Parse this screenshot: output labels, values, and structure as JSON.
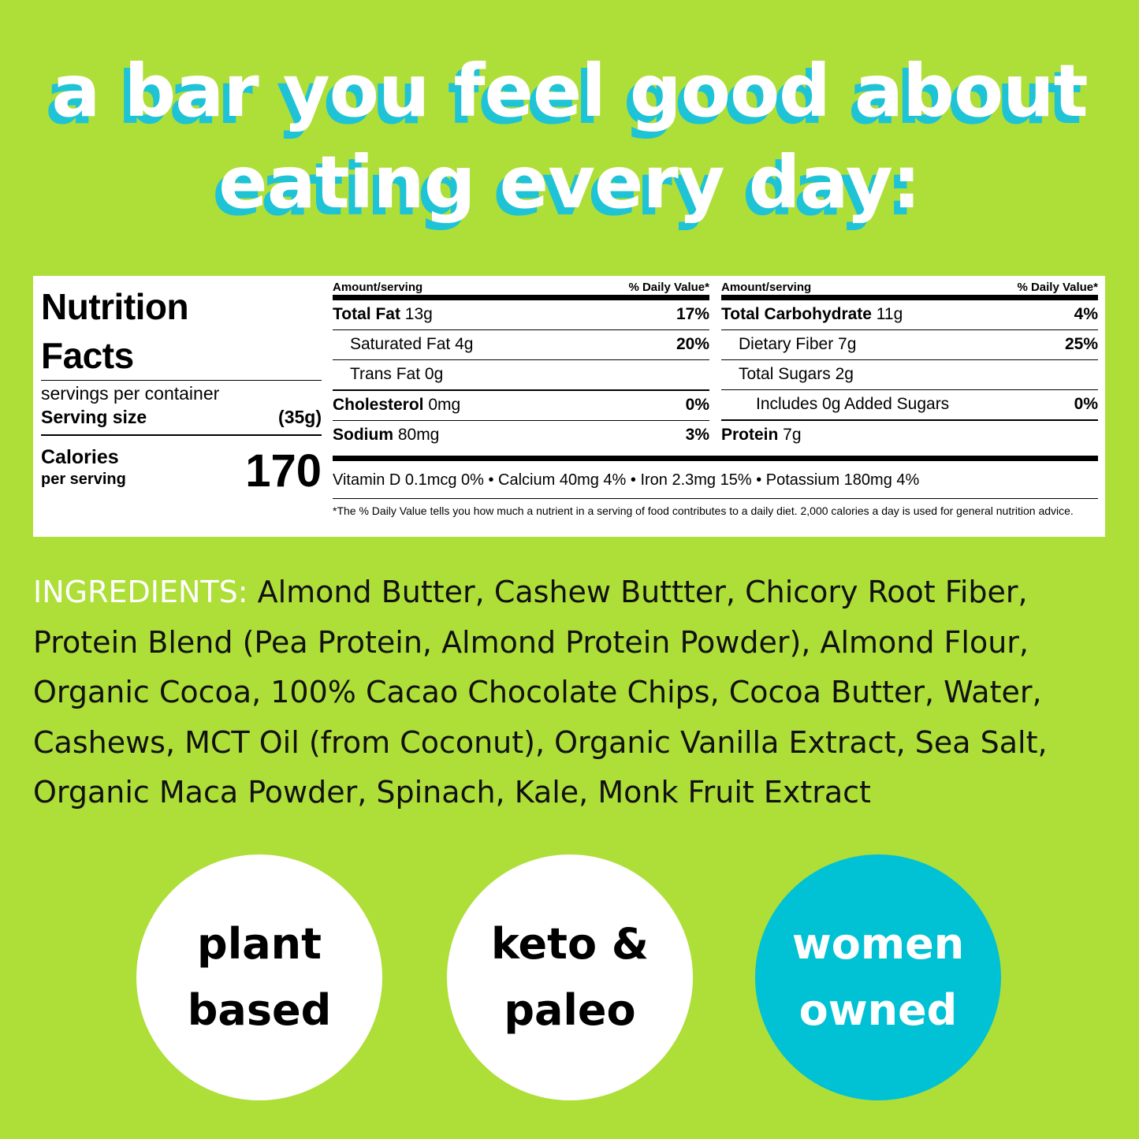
{
  "headline": {
    "line1": "a bar you feel good about",
    "line2": "eating every day:"
  },
  "nutrition": {
    "title_line1": "Nutrition",
    "title_line2": "Facts",
    "servings": "servings per container",
    "serving_size_label": "Serving size",
    "serving_size_value": "(35g)",
    "calories_label": "Calories",
    "calories_sub": "per serving",
    "calories_value": "170",
    "col_a": {
      "header_left": "Amount/serving",
      "header_right": "% Daily Value*",
      "rows": [
        {
          "bold": "Total Fat",
          "amount": " 13g",
          "pct": "17%"
        },
        {
          "bold": "",
          "amount": "Saturated Fat 4g",
          "pct": "20%"
        },
        {
          "bold": "",
          "amount": "Trans Fat 0g",
          "pct": ""
        },
        {
          "bold": "Cholesterol",
          "amount": " 0mg",
          "pct": "0%"
        },
        {
          "bold": "Sodium",
          "amount": " 80mg",
          "pct": "3%"
        }
      ]
    },
    "col_b": {
      "header_left": "Amount/serving",
      "header_right": "% Daily Value*",
      "rows": [
        {
          "bold": "Total Carbohydrate",
          "amount": " 11g",
          "pct": "4%"
        },
        {
          "bold": "",
          "amount": "Dietary Fiber 7g",
          "pct": "25%"
        },
        {
          "bold": "",
          "amount": "Total Sugars 2g",
          "pct": ""
        },
        {
          "bold": "",
          "amount": "Includes 0g Added Sugars",
          "pct": "0%"
        },
        {
          "bold": "Protein",
          "amount": " 7g",
          "pct": ""
        }
      ]
    },
    "vitamins": "Vitamin D 0.1mcg 0%  •  Calcium 40mg 4%  •  Iron 2.3mg 15%  •  Potassium 180mg 4%",
    "footnote": "*The % Daily Value tells you how much a nutrient in a serving of food contributes to a daily diet. 2,000 calories a day is used for general nutrition advice."
  },
  "ingredients": {
    "label": "INGREDIENTS:",
    "text": " Almond Butter, Cashew Buttter, Chicory Root Fiber, Protein Blend (Pea Protein, Almond Protein Powder), Almond Flour, Organic Cocoa, 100% Cacao Chocolate Chips, Cocoa Butter, Water, Cashews, MCT Oil (from Coconut), Organic Vanilla Extract, Sea Salt, Organic Maca Powder, Spinach, Kale, Monk Fruit Extract"
  },
  "badges": [
    {
      "line1": "plant",
      "line2": "based"
    },
    {
      "line1": "keto &",
      "line2": "paleo"
    },
    {
      "line1": "women",
      "line2": "owned"
    }
  ],
  "colors": {
    "background": "#aede38",
    "accent": "#1ec3d6",
    "badge_teal": "#00c2d4"
  }
}
